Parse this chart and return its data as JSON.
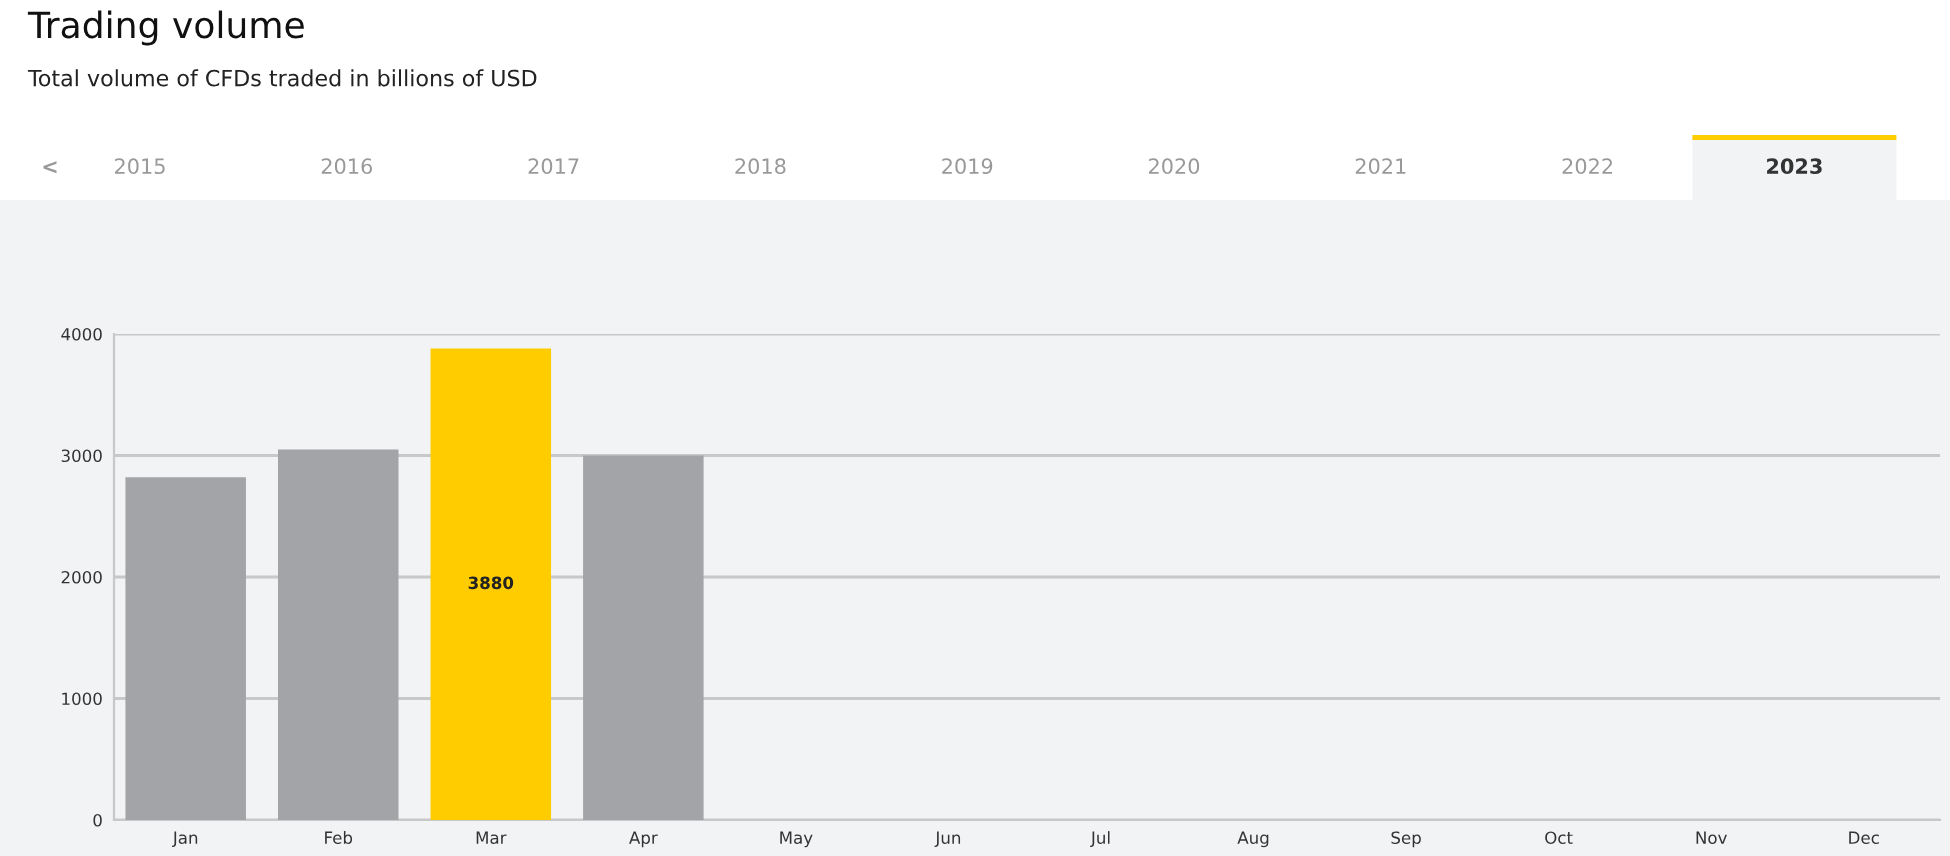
{
  "chart_data": {
    "type": "bar",
    "title": "Trading volume",
    "subtitle": "Total volume of CFDs traded in billions of USD",
    "annotations": [
      "<",
      "2015",
      "2016",
      "2017",
      "2018",
      "2019",
      "2020",
      "2021",
      "2022",
      "2023"
    ],
    "categories": [
      "Jan",
      "Feb",
      "Mar",
      "Apr",
      "May",
      "Jun",
      "Jul",
      "Aug",
      "Sep",
      "Oct",
      "Nov",
      "Dec"
    ],
    "values": [
      2820,
      3050,
      3880,
      3000,
      null,
      null,
      null,
      null,
      null,
      null,
      null,
      null
    ],
    "colors": [
      "#a3a4a7",
      "#a3a4a7",
      "#ffcc00",
      "#a3a4a7",
      "#a3a4a7",
      "#a3a4a7",
      "#a3a4a7",
      "#a3a4a7",
      "#a3a4a7",
      "#a3a4a7",
      "#a3a4a7",
      "#a3a4a7"
    ],
    "value_labels": [
      null,
      null,
      "3880",
      null,
      null,
      null,
      null,
      null,
      null,
      null,
      null,
      null
    ],
    "ylim": [
      0,
      4000
    ],
    "yticks": [
      0,
      1000,
      2000,
      3000,
      4000
    ],
    "grid": "y",
    "legend": false
  }
}
